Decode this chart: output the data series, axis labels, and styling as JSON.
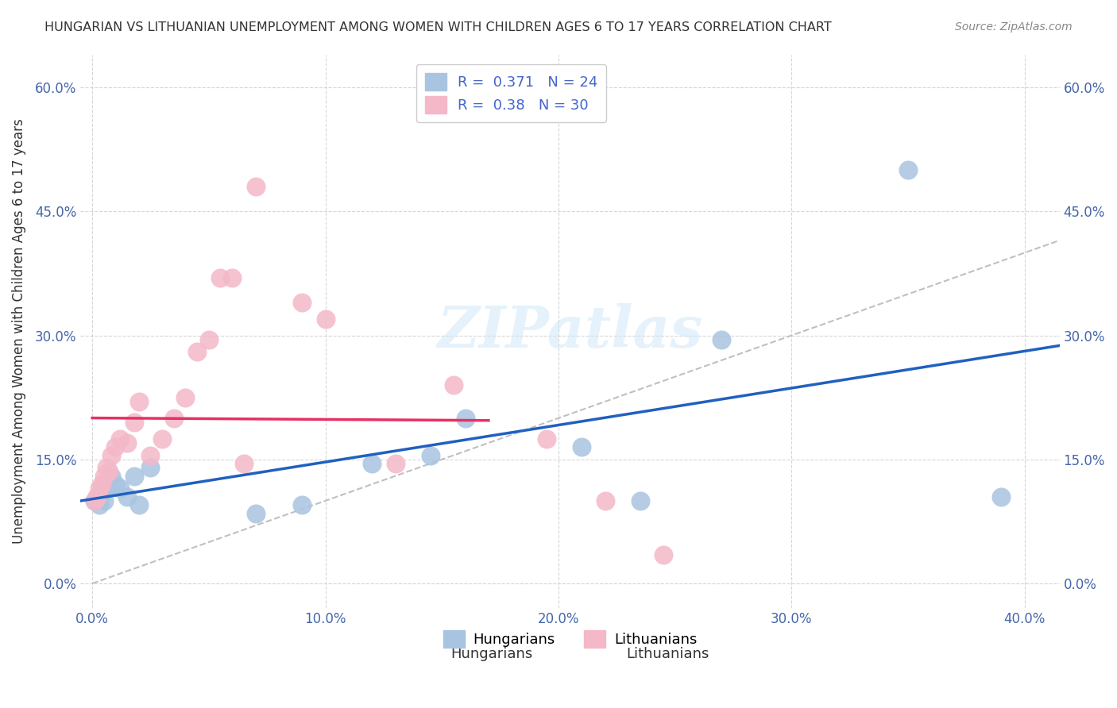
{
  "title": "HUNGARIAN VS LITHUANIAN UNEMPLOYMENT AMONG WOMEN WITH CHILDREN AGES 6 TO 17 YEARS CORRELATION CHART",
  "source": "Source: ZipAtlas.com",
  "ylabel": "Unemployment Among Women with Children Ages 6 to 17 years",
  "xlabel_ticks": [
    "0.0%",
    "10.0%",
    "20.0%",
    "30.0%",
    "40.0%"
  ],
  "xlabel_vals": [
    0.0,
    0.1,
    0.2,
    0.3,
    0.4
  ],
  "ylabel_ticks": [
    "0.0%",
    "15.0%",
    "30.0%",
    "45.0%",
    "60.0%"
  ],
  "ylabel_vals": [
    0.0,
    0.15,
    0.3,
    0.45,
    0.6
  ],
  "xlim": [
    -0.005,
    0.415
  ],
  "ylim": [
    -0.03,
    0.64
  ],
  "hungarian_color": "#a8c4e0",
  "lithuanian_color": "#f4b8c8",
  "hungarian_line_color": "#2060c0",
  "lithuanian_line_color": "#e83060",
  "diagonal_color": "#c0c0c0",
  "R_hungarian": 0.371,
  "N_hungarian": 24,
  "R_lithuanian": 0.38,
  "N_lithuanian": 30,
  "watermark": "ZIPatlas",
  "hungarian_x": [
    0.001,
    0.002,
    0.003,
    0.004,
    0.005,
    0.006,
    0.007,
    0.008,
    0.01,
    0.012,
    0.015,
    0.018,
    0.02,
    0.025,
    0.07,
    0.09,
    0.12,
    0.145,
    0.16,
    0.21,
    0.235,
    0.27,
    0.35,
    0.39
  ],
  "hungarian_y": [
    0.1,
    0.105,
    0.095,
    0.11,
    0.1,
    0.12,
    0.115,
    0.13,
    0.12,
    0.115,
    0.105,
    0.13,
    0.095,
    0.14,
    0.085,
    0.095,
    0.145,
    0.155,
    0.2,
    0.165,
    0.1,
    0.295,
    0.5,
    0.105
  ],
  "lithuanian_x": [
    0.001,
    0.002,
    0.003,
    0.004,
    0.005,
    0.006,
    0.007,
    0.008,
    0.01,
    0.012,
    0.015,
    0.018,
    0.02,
    0.025,
    0.03,
    0.035,
    0.04,
    0.045,
    0.05,
    0.055,
    0.06,
    0.065,
    0.07,
    0.09,
    0.1,
    0.13,
    0.155,
    0.195,
    0.22,
    0.245
  ],
  "lithuanian_y": [
    0.1,
    0.105,
    0.115,
    0.12,
    0.13,
    0.14,
    0.135,
    0.155,
    0.165,
    0.175,
    0.17,
    0.195,
    0.22,
    0.155,
    0.175,
    0.2,
    0.225,
    0.28,
    0.295,
    0.37,
    0.37,
    0.145,
    0.48,
    0.34,
    0.32,
    0.145,
    0.24,
    0.175,
    0.1,
    0.035
  ]
}
